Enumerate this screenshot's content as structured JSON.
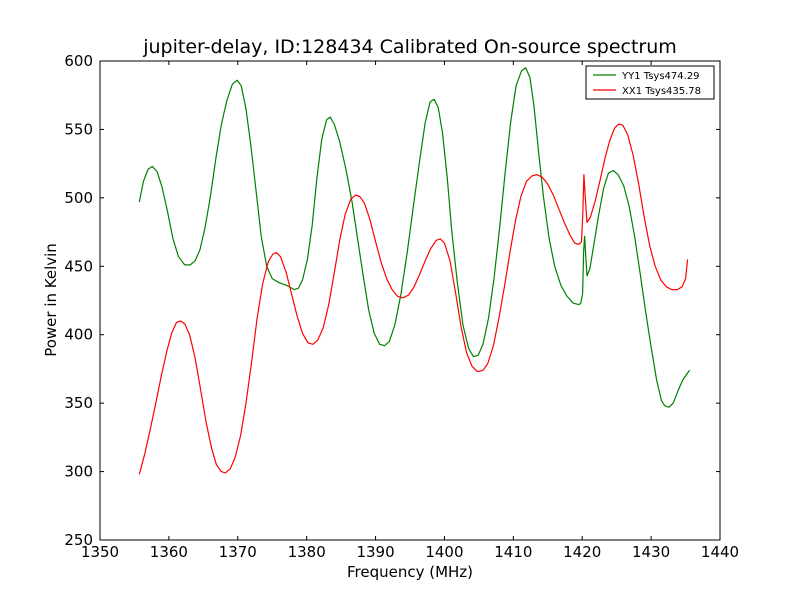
{
  "chart_data": {
    "type": "line",
    "title": "jupiter-delay, ID:128434 Calibrated On-source spectrum",
    "xlabel": "Frequency (MHz)",
    "ylabel": "Power in Kelvin",
    "xlim": [
      1350,
      1440
    ],
    "ylim": [
      250,
      600
    ],
    "xticks": [
      "1350",
      "1360",
      "1370",
      "1380",
      "1390",
      "1400",
      "1410",
      "1420",
      "1430",
      "1440"
    ],
    "yticks": [
      "250",
      "300",
      "350",
      "400",
      "450",
      "500",
      "550",
      "600"
    ],
    "grid": false,
    "legend_position": "top-right",
    "series": [
      {
        "name": "YY1 Tsys474.29",
        "color": "#008000",
        "points": [
          [
            1355.7,
            497
          ],
          [
            1356.3,
            512
          ],
          [
            1357.0,
            521
          ],
          [
            1357.6,
            523
          ],
          [
            1358.3,
            519
          ],
          [
            1359.0,
            508
          ],
          [
            1359.8,
            490
          ],
          [
            1360.6,
            470
          ],
          [
            1361.4,
            457
          ],
          [
            1362.3,
            451
          ],
          [
            1363.1,
            451
          ],
          [
            1363.8,
            454
          ],
          [
            1364.5,
            462
          ],
          [
            1365.2,
            477
          ],
          [
            1366.0,
            500
          ],
          [
            1366.8,
            528
          ],
          [
            1367.6,
            553
          ],
          [
            1368.4,
            571
          ],
          [
            1369.2,
            583
          ],
          [
            1369.9,
            586
          ],
          [
            1370.5,
            582
          ],
          [
            1371.2,
            565
          ],
          [
            1371.9,
            538
          ],
          [
            1372.7,
            503
          ],
          [
            1373.4,
            472
          ],
          [
            1374.2,
            450
          ],
          [
            1375.0,
            441
          ],
          [
            1376.0,
            438
          ],
          [
            1377.1,
            436
          ],
          [
            1378.2,
            433
          ],
          [
            1378.8,
            434
          ],
          [
            1379.4,
            440
          ],
          [
            1380.1,
            455
          ],
          [
            1380.8,
            480
          ],
          [
            1381.5,
            515
          ],
          [
            1382.2,
            543
          ],
          [
            1382.9,
            557
          ],
          [
            1383.4,
            559
          ],
          [
            1384.0,
            554
          ],
          [
            1384.8,
            541
          ],
          [
            1385.7,
            521
          ],
          [
            1386.6,
            497
          ],
          [
            1387.4,
            470
          ],
          [
            1388.2,
            443
          ],
          [
            1389.0,
            418
          ],
          [
            1389.8,
            401
          ],
          [
            1390.6,
            393
          ],
          [
            1391.3,
            392
          ],
          [
            1392.0,
            395
          ],
          [
            1392.8,
            407
          ],
          [
            1393.7,
            430
          ],
          [
            1394.6,
            460
          ],
          [
            1395.5,
            494
          ],
          [
            1396.4,
            527
          ],
          [
            1397.2,
            555
          ],
          [
            1397.9,
            570
          ],
          [
            1398.5,
            572
          ],
          [
            1399.1,
            566
          ],
          [
            1399.7,
            548
          ],
          [
            1400.4,
            515
          ],
          [
            1401.1,
            474
          ],
          [
            1401.9,
            437
          ],
          [
            1402.7,
            407
          ],
          [
            1403.5,
            390
          ],
          [
            1404.2,
            384
          ],
          [
            1404.9,
            385
          ],
          [
            1405.6,
            393
          ],
          [
            1406.4,
            412
          ],
          [
            1407.2,
            441
          ],
          [
            1408.0,
            478
          ],
          [
            1408.8,
            518
          ],
          [
            1409.6,
            555
          ],
          [
            1410.4,
            582
          ],
          [
            1411.2,
            593
          ],
          [
            1411.8,
            595
          ],
          [
            1412.4,
            588
          ],
          [
            1413.0,
            567
          ],
          [
            1413.7,
            532
          ],
          [
            1414.4,
            500
          ],
          [
            1415.2,
            470
          ],
          [
            1416.0,
            450
          ],
          [
            1416.9,
            436
          ],
          [
            1417.8,
            428
          ],
          [
            1418.7,
            423
          ],
          [
            1419.5,
            422
          ],
          [
            1419.8,
            423
          ],
          [
            1420.05,
            430
          ],
          [
            1420.2,
            460
          ],
          [
            1420.35,
            472
          ],
          [
            1420.5,
            458
          ],
          [
            1420.7,
            443
          ],
          [
            1421.1,
            448
          ],
          [
            1421.7,
            466
          ],
          [
            1422.4,
            488
          ],
          [
            1423.1,
            507
          ],
          [
            1423.8,
            518
          ],
          [
            1424.5,
            520
          ],
          [
            1425.2,
            517
          ],
          [
            1426.0,
            509
          ],
          [
            1426.8,
            494
          ],
          [
            1427.6,
            472
          ],
          [
            1428.4,
            445
          ],
          [
            1429.2,
            417
          ],
          [
            1430.0,
            391
          ],
          [
            1430.8,
            367
          ],
          [
            1431.5,
            352
          ],
          [
            1432.0,
            348
          ],
          [
            1432.6,
            347
          ],
          [
            1433.2,
            350
          ],
          [
            1433.9,
            359
          ],
          [
            1434.6,
            367
          ],
          [
            1435.3,
            372
          ],
          [
            1435.6,
            374
          ]
        ]
      },
      {
        "name": "XX1 Tsys435.78",
        "color": "#ff0000",
        "points": [
          [
            1355.7,
            298
          ],
          [
            1356.5,
            313
          ],
          [
            1357.3,
            331
          ],
          [
            1358.1,
            350
          ],
          [
            1358.9,
            370
          ],
          [
            1359.7,
            388
          ],
          [
            1360.4,
            401
          ],
          [
            1361.1,
            409
          ],
          [
            1361.7,
            410
          ],
          [
            1362.3,
            408
          ],
          [
            1363.0,
            400
          ],
          [
            1363.8,
            383
          ],
          [
            1364.6,
            360
          ],
          [
            1365.4,
            336
          ],
          [
            1366.2,
            317
          ],
          [
            1366.9,
            305
          ],
          [
            1367.6,
            300
          ],
          [
            1368.2,
            299
          ],
          [
            1368.9,
            302
          ],
          [
            1369.6,
            310
          ],
          [
            1370.4,
            326
          ],
          [
            1371.2,
            350
          ],
          [
            1372.0,
            380
          ],
          [
            1372.8,
            412
          ],
          [
            1373.6,
            437
          ],
          [
            1374.4,
            453
          ],
          [
            1375.1,
            459
          ],
          [
            1375.6,
            460
          ],
          [
            1376.2,
            457
          ],
          [
            1377.0,
            446
          ],
          [
            1377.8,
            430
          ],
          [
            1378.6,
            414
          ],
          [
            1379.4,
            401
          ],
          [
            1380.2,
            394
          ],
          [
            1380.9,
            393
          ],
          [
            1381.6,
            396
          ],
          [
            1382.4,
            405
          ],
          [
            1383.2,
            422
          ],
          [
            1384.0,
            445
          ],
          [
            1384.8,
            469
          ],
          [
            1385.6,
            488
          ],
          [
            1386.4,
            499
          ],
          [
            1387.1,
            502
          ],
          [
            1387.7,
            501
          ],
          [
            1388.4,
            496
          ],
          [
            1389.2,
            484
          ],
          [
            1390.0,
            468
          ],
          [
            1390.8,
            453
          ],
          [
            1391.6,
            441
          ],
          [
            1392.4,
            433
          ],
          [
            1393.2,
            428
          ],
          [
            1394.0,
            427
          ],
          [
            1394.8,
            429
          ],
          [
            1395.6,
            435
          ],
          [
            1396.4,
            444
          ],
          [
            1397.2,
            454
          ],
          [
            1398.0,
            463
          ],
          [
            1398.8,
            469
          ],
          [
            1399.4,
            470
          ],
          [
            1400.0,
            467
          ],
          [
            1400.8,
            454
          ],
          [
            1401.6,
            431
          ],
          [
            1402.4,
            406
          ],
          [
            1403.2,
            387
          ],
          [
            1404.0,
            377
          ],
          [
            1404.8,
            373
          ],
          [
            1405.6,
            374
          ],
          [
            1406.3,
            379
          ],
          [
            1407.1,
            392
          ],
          [
            1407.9,
            412
          ],
          [
            1408.7,
            435
          ],
          [
            1409.5,
            460
          ],
          [
            1410.3,
            483
          ],
          [
            1411.1,
            501
          ],
          [
            1411.9,
            512
          ],
          [
            1412.7,
            516
          ],
          [
            1413.4,
            517
          ],
          [
            1414.2,
            515
          ],
          [
            1415.0,
            510
          ],
          [
            1415.8,
            502
          ],
          [
            1416.6,
            492
          ],
          [
            1417.4,
            482
          ],
          [
            1418.2,
            473
          ],
          [
            1418.9,
            467
          ],
          [
            1419.5,
            466
          ],
          [
            1419.9,
            468
          ],
          [
            1420.1,
            490
          ],
          [
            1420.25,
            517
          ],
          [
            1420.45,
            500
          ],
          [
            1420.7,
            482
          ],
          [
            1421.2,
            486
          ],
          [
            1421.9,
            498
          ],
          [
            1422.6,
            513
          ],
          [
            1423.3,
            529
          ],
          [
            1424.0,
            542
          ],
          [
            1424.7,
            551
          ],
          [
            1425.3,
            554
          ],
          [
            1425.9,
            553
          ],
          [
            1426.6,
            546
          ],
          [
            1427.4,
            531
          ],
          [
            1428.2,
            510
          ],
          [
            1429.0,
            486
          ],
          [
            1429.8,
            465
          ],
          [
            1430.6,
            450
          ],
          [
            1431.4,
            440
          ],
          [
            1432.2,
            435
          ],
          [
            1433.0,
            433
          ],
          [
            1433.8,
            433
          ],
          [
            1434.5,
            435
          ],
          [
            1435.0,
            441
          ],
          [
            1435.3,
            455
          ]
        ]
      }
    ]
  }
}
